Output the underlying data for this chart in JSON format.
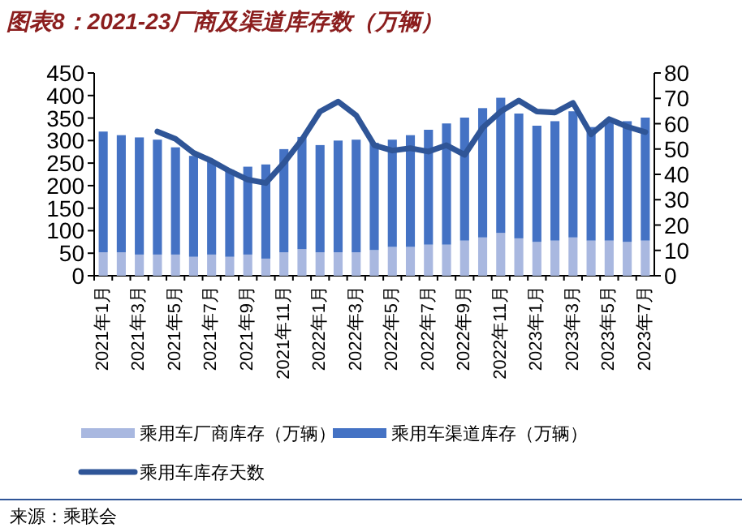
{
  "chart_data": {
    "type": "bar",
    "title": "图表8：2021-23厂商及渠道库存数（万辆）",
    "stacked": true,
    "legend": "bottom",
    "categories": [
      "2021年1月",
      null,
      "2021年3月",
      null,
      "2021年5月",
      null,
      "2021年7月",
      null,
      "2021年9月",
      null,
      "2021年11月",
      null,
      "2022年1月",
      null,
      "2022年3月",
      null,
      "2022年5月",
      null,
      "2022年7月",
      null,
      "2022年9月",
      null,
      "2022年11月",
      null,
      "2023年1月",
      null,
      "2023年3月",
      null,
      "2023年5月",
      null,
      "2023年7月"
    ],
    "series": [
      {
        "name": "乘用车厂商库存（万辆）",
        "color": "#a9b8e0",
        "values": [
          52,
          52,
          47,
          47,
          47,
          42,
          47,
          42,
          47,
          38,
          52,
          59,
          52,
          52,
          52,
          57,
          64,
          64,
          69,
          69,
          78,
          85,
          95,
          83,
          75,
          78,
          85,
          78,
          78,
          75,
          78
        ]
      },
      {
        "name": "乘用车渠道库存（万辆）",
        "color": "#4472c4",
        "values": [
          268,
          260,
          260,
          255,
          238,
          224,
          207,
          193,
          195,
          209,
          229,
          249,
          238,
          248,
          250,
          238,
          238,
          248,
          255,
          269,
          273,
          287,
          300,
          277,
          258,
          265,
          280,
          252,
          266,
          268,
          273
        ]
      },
      {
        "name": "乘用车库存天数",
        "type": "line",
        "axis": "y2",
        "color": "#2f5597",
        "values": [
          null,
          null,
          null,
          56.9,
          54,
          48.5,
          45.3,
          41.3,
          37.9,
          36.6,
          44.5,
          53.7,
          64.8,
          68.7,
          63.3,
          51.5,
          49.4,
          50.3,
          49,
          51.5,
          47.7,
          58.4,
          64.8,
          69.1,
          64.8,
          64.4,
          68.2,
          55.8,
          61.8,
          58.8,
          56.7
        ]
      }
    ],
    "ylim": [
      0,
      450
    ],
    "yticks": [
      0,
      50,
      100,
      150,
      200,
      250,
      300,
      350,
      400,
      450
    ],
    "y2lim": [
      0,
      80
    ],
    "y2ticks": [
      0,
      10,
      20,
      30,
      40,
      50,
      60,
      70,
      80
    ],
    "annotations": [
      "来源：乘联会"
    ]
  }
}
